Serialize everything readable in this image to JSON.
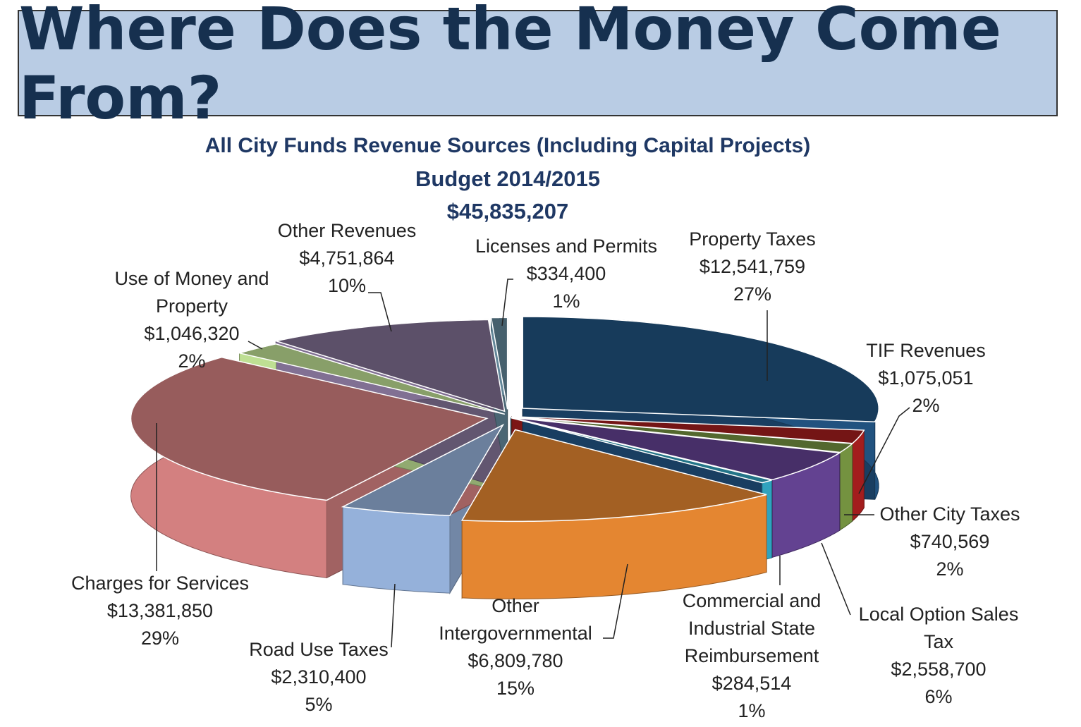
{
  "banner": {
    "title": "Where Does the Money Come From?"
  },
  "chart_data": {
    "type": "pie",
    "title": "All City Funds Revenue Sources (Including Capital Projects)",
    "subtitle": "Budget 2014/2015",
    "total": "$45,835,207",
    "slices": [
      {
        "key": "property_taxes",
        "name": "Property Taxes",
        "amount": "$12,541,759",
        "percent": "27%",
        "value": 12541759,
        "color": "#1f4e79"
      },
      {
        "key": "tif_revenues",
        "name": "TIF Revenues",
        "amount": "$1,075,051",
        "percent": "2%",
        "value": 1075051,
        "color": "#9b1c1c"
      },
      {
        "key": "other_city_taxes",
        "name": "Other City Taxes",
        "amount": "$740,569",
        "percent": "2%",
        "value": 740569,
        "color": "#6e8b3d"
      },
      {
        "key": "local_option",
        "name": "Local Option Sales Tax",
        "amount": "$2,558,700",
        "percent": "6%",
        "value": 2558700,
        "color": "#5e3f8a"
      },
      {
        "key": "commercial",
        "name": "Commercial and Industrial State Reimbursement",
        "amount": "$284,514",
        "percent": "1%",
        "value": 284514,
        "color": "#2e9bb5"
      },
      {
        "key": "other_intergov",
        "name": "Other Intergovernmental",
        "amount": "$6,809,780",
        "percent": "15%",
        "value": 6809780,
        "color": "#d9802f"
      },
      {
        "key": "road_use",
        "name": "Road Use Taxes",
        "amount": "$2,310,400",
        "percent": "5%",
        "value": 2310400,
        "color": "#8ea9d0"
      },
      {
        "key": "charges",
        "name": "Charges for Services",
        "amount": "$13,381,850",
        "percent": "29%",
        "value": 13381850,
        "color": "#c97a7a"
      },
      {
        "key": "use_of_money",
        "name": "Use of Money and Property",
        "amount": "$1,046,320",
        "percent": "2%",
        "value": 1046320,
        "color": "#b5d48c"
      },
      {
        "key": "other_revenues",
        "name": "Other Revenues",
        "amount": "$4,751,864",
        "percent": "10%",
        "value": 4751864,
        "color": "#7b6b8c"
      },
      {
        "key": "licenses",
        "name": "Licenses and Permits",
        "amount": "$334,400",
        "percent": "1%",
        "value": 334400,
        "color": "#5d8091"
      }
    ],
    "labels": {
      "property_taxes": {
        "lines": [
          "Property Taxes"
        ]
      },
      "tif_revenues": {
        "lines": [
          "TIF Revenues"
        ]
      },
      "other_city_taxes": {
        "lines": [
          "Other City Taxes"
        ]
      },
      "local_option": {
        "lines": [
          "Local Option Sales",
          "Tax"
        ]
      },
      "commercial": {
        "lines": [
          "Commercial and",
          "Industrial State",
          "Reimbursement"
        ]
      },
      "other_intergov": {
        "lines": [
          "Other",
          "Intergovernmental"
        ]
      },
      "road_use": {
        "lines": [
          "Road Use Taxes"
        ]
      },
      "charges": {
        "lines": [
          "Charges for Services"
        ]
      },
      "use_of_money": {
        "lines": [
          "Use of Money and",
          "Property"
        ]
      },
      "other_revenues": {
        "lines": [
          "Other Revenues"
        ]
      },
      "licenses": {
        "lines": [
          "Licenses and Permits"
        ]
      }
    },
    "legend": "none"
  }
}
